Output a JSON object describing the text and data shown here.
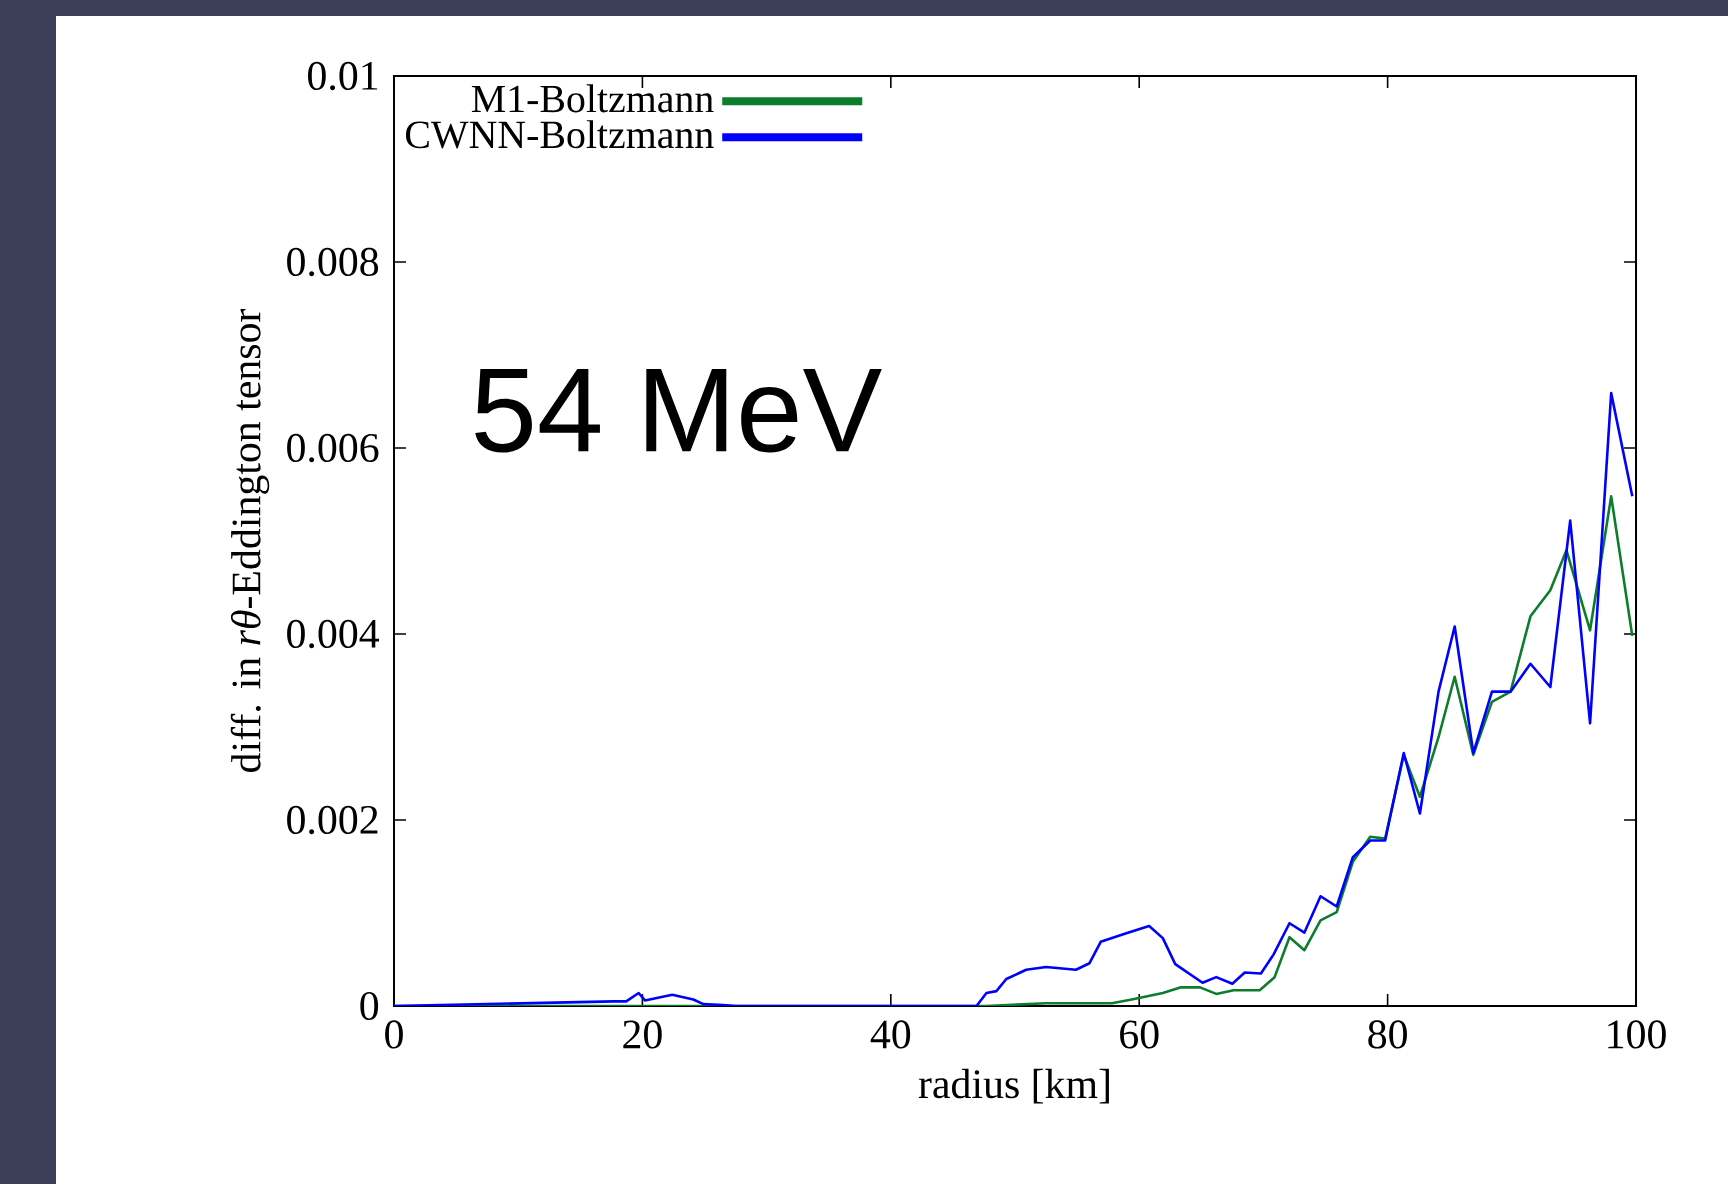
{
  "chart_data": {
    "type": "line",
    "xlabel": "radius [km]",
    "ylabel": "diff. in *rθ*-Eddington tensor",
    "annotations": [
      "54 MeV"
    ],
    "xlim": [
      0,
      100
    ],
    "xticks": [
      0,
      20,
      40,
      60,
      80,
      100
    ],
    "ylim": [
      0,
      0.01
    ],
    "yticks": [
      0,
      0.002,
      0.004,
      0.006,
      0.008,
      0.01
    ],
    "grid": false,
    "legend": "top left",
    "marker": "none",
    "line_style": "solid",
    "series": [
      {
        "name": "M1-Boltzmann",
        "color": "#0b7d2c",
        "x": [
          0,
          47,
          47.7,
          52.5,
          57.8,
          59.4,
          61.9,
          63.3,
          64.9,
          66.2,
          67.6,
          69.7,
          70.9,
          72.1,
          73.3,
          74.6,
          75.9,
          77.2,
          78.6,
          79.8,
          81.3,
          82.6,
          84.1,
          85.4,
          86.9,
          88.4,
          89.9,
          91.5,
          93.1,
          94.4,
          96.3,
          98.0,
          99.7
        ],
        "values": [
          0,
          0,
          0,
          3e-05,
          3e-05,
          7e-05,
          0.00014,
          0.0002,
          0.0002,
          0.00013,
          0.00017,
          0.00017,
          0.00031,
          0.00074,
          0.0006,
          0.00092,
          0.00101,
          0.00155,
          0.00182,
          0.0018,
          0.0027,
          0.00225,
          0.00289,
          0.00354,
          0.0027,
          0.00327,
          0.00338,
          0.00419,
          0.00447,
          0.0049,
          0.00404,
          0.00548,
          0.00398
        ]
      },
      {
        "name": "CWNN-Boltzmann",
        "color": "#0000ff",
        "x": [
          0,
          17.7,
          18.7,
          19.7,
          20.2,
          22.4,
          24.1,
          24.9,
          26.5,
          27.5,
          46.9,
          47.7,
          48.5,
          49.3,
          50.9,
          52.5,
          54.9,
          56.0,
          56.9,
          58.9,
          60.8,
          61.9,
          62.9,
          65.1,
          66.2,
          67.5,
          68.5,
          69.8,
          70.8,
          72.1,
          73.3,
          74.6,
          75.9,
          77.2,
          78.6,
          79.8,
          81.3,
          82.6,
          84.1,
          85.4,
          86.9,
          88.4,
          89.9,
          91.5,
          93.1,
          94.7,
          96.3,
          98.0,
          99.7
        ],
        "values": [
          0,
          5e-05,
          5e-05,
          0.00014,
          6e-05,
          0.00012,
          7e-05,
          2e-05,
          1e-05,
          0,
          0,
          0.00014,
          0.00016,
          0.00029,
          0.00039,
          0.00042,
          0.00039,
          0.00046,
          0.00069,
          0.00078,
          0.00086,
          0.00073,
          0.00045,
          0.00025,
          0.00031,
          0.00024,
          0.00036,
          0.00035,
          0.00055,
          0.00089,
          0.00079,
          0.00118,
          0.00107,
          0.0016,
          0.00178,
          0.00178,
          0.00272,
          0.00207,
          0.00338,
          0.00408,
          0.00272,
          0.00338,
          0.00338,
          0.00368,
          0.00343,
          0.00522,
          0.00304,
          0.00659,
          0.00548
        ]
      }
    ]
  }
}
